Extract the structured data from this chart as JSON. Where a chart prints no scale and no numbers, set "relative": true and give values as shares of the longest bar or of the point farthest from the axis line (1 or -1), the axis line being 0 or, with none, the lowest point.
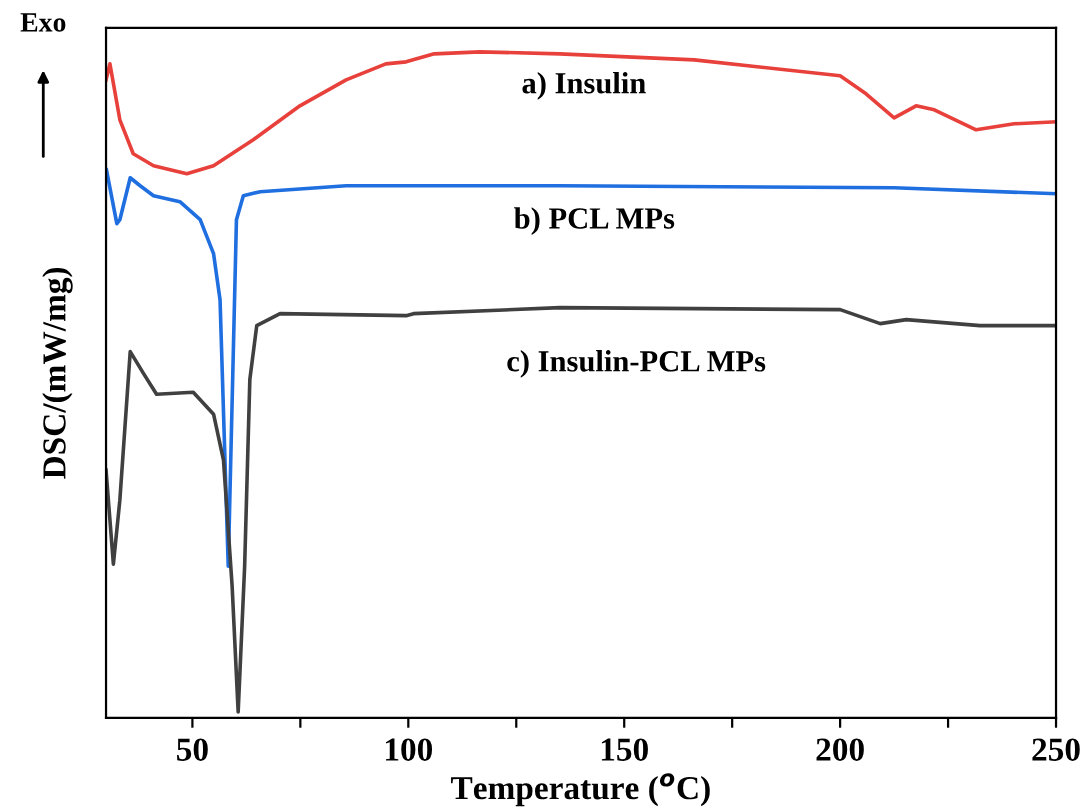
{
  "chart_data": {
    "type": "line",
    "relative": true,
    "xlabel": "Temperature ($^{o}$C)",
    "ylabel": "DSC/(mW/mg)",
    "xlim": [
      30,
      250
    ],
    "xticks": [
      50,
      {
        "value": 75,
        "label": null
      },
      100,
      {
        "value": 125,
        "label": null
      },
      150,
      {
        "value": 175,
        "label": null
      },
      200,
      {
        "value": 225,
        "label": null
      },
      250
    ],
    "tick_labels": "x",
    "grid": false,
    "legend": false,
    "marker": "none",
    "line_style": "solid",
    "annotations": [
      "Exo",
      "a) Insulin",
      "b) PCL MPs",
      "c) Insulin-PCL MPs"
    ],
    "series": [
      {
        "color": "#e8413c",
        "x": [
          30,
          30.9,
          33.2,
          36.3,
          41,
          48.7,
          54.9,
          64.1,
          74.9,
          85.6,
          94.8,
          99.5,
          106,
          116.6,
          135.1,
          166.2,
          200,
          206,
          212.5,
          217.6,
          221.8,
          231.5,
          240.3,
          250
        ],
        "values": [
          0.958,
          0.982,
          0.898,
          0.847,
          0.829,
          0.817,
          0.829,
          0.868,
          0.919,
          0.958,
          0.982,
          0.985,
          0.997,
          1,
          0.997,
          0.988,
          0.964,
          0.937,
          0.901,
          0.919,
          0.913,
          0.883,
          0.892,
          0.895
        ]
      },
      {
        "color": "#1f6fe0",
        "x": [
          30.1,
          32.5,
          33.2,
          35.6,
          37.9,
          41,
          47.1,
          51.8,
          54.9,
          56.4,
          58.3,
          60.2,
          61.8,
          65.7,
          85.6,
          135.1,
          212.5,
          250
        ],
        "values": [
          0.823,
          0.742,
          0.748,
          0.811,
          0.799,
          0.784,
          0.775,
          0.748,
          0.697,
          0.628,
          0.228,
          0.748,
          0.784,
          0.79,
          0.799,
          0.799,
          0.796,
          0.787
        ]
      },
      {
        "color": "#404040",
        "x": [
          30,
          31.7,
          33.2,
          35.6,
          38.7,
          41.7,
          50.2,
          54.9,
          57.2,
          59.2,
          60.6,
          62.1,
          63.3,
          64.9,
          70.3,
          99.5,
          101.2,
          135.1,
          200,
          209.3,
          215.3,
          232.4,
          250
        ],
        "values": [
          0.372,
          0.231,
          0.327,
          0.55,
          0.517,
          0.486,
          0.489,
          0.456,
          0.387,
          0.198,
          0.009,
          0.228,
          0.508,
          0.589,
          0.607,
          0.604,
          0.607,
          0.616,
          0.613,
          0.592,
          0.598,
          0.589,
          0.589
        ]
      }
    ]
  }
}
